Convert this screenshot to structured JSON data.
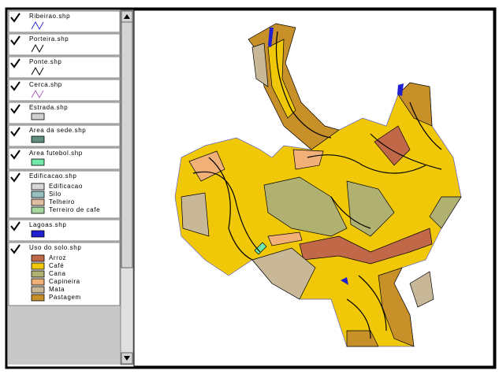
{
  "layers": [
    {
      "name": "Ribeirao.shp",
      "symbol": {
        "type": "line",
        "color": "#3030d0"
      }
    },
    {
      "name": "Porteira.shp",
      "symbol": {
        "type": "line",
        "color": "#000000"
      }
    },
    {
      "name": "Ponte.shp",
      "symbol": {
        "type": "line",
        "color": "#000000"
      }
    },
    {
      "name": "Cerca.shp",
      "symbol": {
        "type": "line",
        "color": "#b060c0"
      }
    },
    {
      "name": "Estrada.shp",
      "symbol": {
        "type": "fill",
        "color": "#d0d0d0"
      }
    },
    {
      "name": "Area da sede.shp",
      "symbol": {
        "type": "fill",
        "color": "#5f8f80"
      }
    },
    {
      "name": "Area futebol.shp",
      "symbol": {
        "type": "fill",
        "color": "#70e8a8"
      }
    },
    {
      "name": "Edificacao.shp",
      "classes": [
        {
          "label": "Edificacao",
          "color": "#d8d8d8"
        },
        {
          "label": "Silo",
          "color": "#98c0c0"
        },
        {
          "label": "Telheiro",
          "color": "#e0c0a0"
        },
        {
          "label": "Terreiro de cafe",
          "color": "#a8d8a0"
        }
      ]
    },
    {
      "name": "Lagoas.shp",
      "symbol": {
        "type": "fill",
        "color": "#2020d0"
      }
    },
    {
      "name": "Uso do solo.shp",
      "classes": [
        {
          "label": "Arroz",
          "color": "#c06848"
        },
        {
          "label": "Café",
          "color": "#f0c808"
        },
        {
          "label": "Cana",
          "color": "#b0b070"
        },
        {
          "label": "Capineira",
          "color": "#f0b078"
        },
        {
          "label": "Mata",
          "color": "#c8b898"
        },
        {
          "label": "Pastagem",
          "color": "#c89028"
        }
      ]
    }
  ]
}
